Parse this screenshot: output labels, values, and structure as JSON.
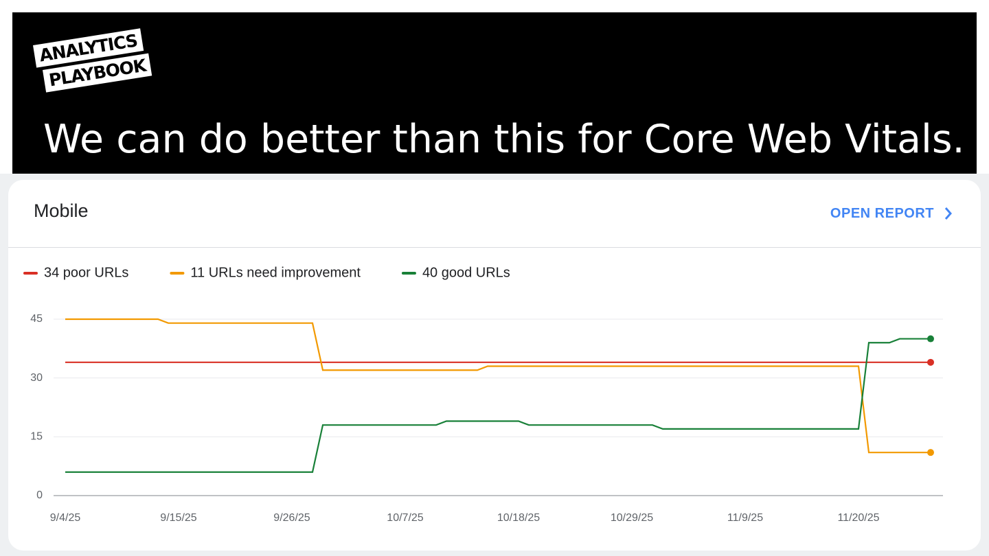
{
  "header": {
    "logo": [
      "ANALYTICS",
      "PLAYBOOK"
    ],
    "headline": "We can do better than this for Core Web Vitals."
  },
  "card": {
    "title": "Mobile",
    "action": "OPEN REPORT"
  },
  "chart_data": {
    "type": "line",
    "x": [
      "9/4/25",
      "9/13/25",
      "9/14/25",
      "9/28/25",
      "9/29/25",
      "10/10/25",
      "10/11/25",
      "10/14/25",
      "10/15/25",
      "10/18/25",
      "10/19/25",
      "10/31/25",
      "11/1/25",
      "11/20/25",
      "11/21/25",
      "11/23/25",
      "11/24/25",
      "11/27/25"
    ],
    "series": [
      {
        "name": "34 poor URLs",
        "color": "#d93025",
        "values": [
          34,
          34,
          34,
          34,
          34,
          34,
          34,
          34,
          34,
          34,
          34,
          34,
          34,
          34,
          34,
          34,
          34,
          34
        ]
      },
      {
        "name": "11 URLs need improvement",
        "color": "#f29900",
        "values": [
          45,
          45,
          44,
          44,
          32,
          32,
          32,
          32,
          33,
          33,
          33,
          33,
          33,
          33,
          11,
          11,
          11,
          11
        ]
      },
      {
        "name": "40 good URLs",
        "color": "#188038",
        "values": [
          6,
          6,
          6,
          6,
          18,
          18,
          19,
          19,
          19,
          19,
          18,
          18,
          17,
          17,
          39,
          39,
          40,
          40
        ]
      }
    ],
    "ylim": [
      0,
      45
    ],
    "yticks": [
      0,
      15,
      30,
      45
    ],
    "xticks": [
      "9/4/25",
      "9/15/25",
      "9/26/25",
      "10/7/25",
      "10/18/25",
      "10/29/25",
      "11/9/25",
      "11/20/25"
    ],
    "grid": true
  }
}
